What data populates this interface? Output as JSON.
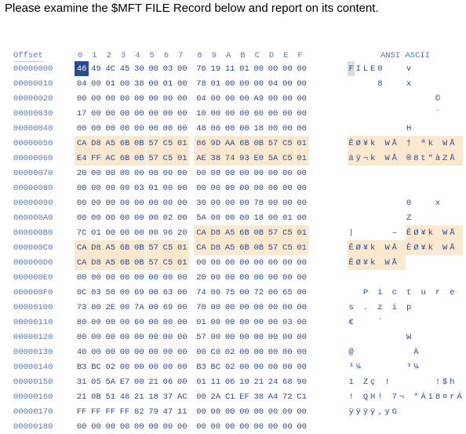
{
  "prompt": "Please examine the $MFT FILE Record below and report on its content.",
  "header": {
    "offset_label": "Offset",
    "columns": [
      "0",
      "1",
      "2",
      "3",
      "4",
      "5",
      "6",
      "7",
      "8",
      "9",
      "A",
      "B",
      "C",
      "D",
      "E",
      "F"
    ],
    "ascii_label": "ANSI ASCII"
  },
  "rows": [
    {
      "offset": "00000000",
      "bytes": [
        "46",
        "49",
        "4C",
        "45",
        "30",
        "00",
        "03",
        "00",
        "76",
        "19",
        "11",
        "01",
        "00",
        "00",
        "00",
        "00"
      ],
      "ascii": "FILE0   v       "
    },
    {
      "offset": "00000010",
      "bytes": [
        "04",
        "00",
        "01",
        "00",
        "38",
        "00",
        "01",
        "00",
        "78",
        "01",
        "00",
        "00",
        "00",
        "04",
        "00",
        "00"
      ],
      "ascii": "    8   x       "
    },
    {
      "offset": "00000020",
      "bytes": [
        "00",
        "00",
        "00",
        "00",
        "00",
        "00",
        "00",
        "00",
        "04",
        "00",
        "00",
        "00",
        "A9",
        "00",
        "00",
        "00"
      ],
      "ascii": "            ©   "
    },
    {
      "offset": "00000030",
      "bytes": [
        "17",
        "00",
        "00",
        "00",
        "00",
        "00",
        "00",
        "00",
        "10",
        "00",
        "00",
        "00",
        "60",
        "00",
        "00",
        "00"
      ],
      "ascii": "            `   "
    },
    {
      "offset": "00000040",
      "bytes": [
        "00",
        "00",
        "00",
        "00",
        "00",
        "00",
        "00",
        "00",
        "48",
        "00",
        "00",
        "00",
        "18",
        "00",
        "00",
        "00"
      ],
      "ascii": "        H       "
    },
    {
      "offset": "00000050",
      "bytes": [
        "CA",
        "D8",
        "A5",
        "6B",
        "0B",
        "57",
        "C5",
        "01",
        "86",
        "9D",
        "AA",
        "6B",
        "0B",
        "57",
        "C5",
        "01"
      ],
      "ascii": "ÊØ¥k WÅ † ªk WÅ "
    },
    {
      "offset": "00000060",
      "bytes": [
        "E4",
        "FF",
        "AC",
        "6B",
        "0B",
        "57",
        "C5",
        "01",
        "AE",
        "38",
        "74",
        "93",
        "E0",
        "5A",
        "C5",
        "01"
      ],
      "ascii": "äÿ¬k WÅ ®8t“àZÅ "
    },
    {
      "offset": "00000070",
      "bytes": [
        "20",
        "00",
        "00",
        "00",
        "00",
        "00",
        "00",
        "00",
        "00",
        "00",
        "00",
        "00",
        "00",
        "00",
        "00",
        "00"
      ],
      "ascii": "                "
    },
    {
      "offset": "00000080",
      "bytes": [
        "00",
        "00",
        "00",
        "00",
        "03",
        "01",
        "00",
        "00",
        "00",
        "00",
        "00",
        "00",
        "00",
        "00",
        "00",
        "00"
      ],
      "ascii": "                "
    },
    {
      "offset": "00000090",
      "bytes": [
        "00",
        "00",
        "00",
        "00",
        "00",
        "00",
        "00",
        "00",
        "30",
        "00",
        "00",
        "00",
        "78",
        "00",
        "00",
        "00"
      ],
      "ascii": "        0   x   "
    },
    {
      "offset": "000000A0",
      "bytes": [
        "00",
        "00",
        "00",
        "00",
        "00",
        "00",
        "02",
        "00",
        "5A",
        "00",
        "00",
        "00",
        "18",
        "00",
        "01",
        "00"
      ],
      "ascii": "        Z       "
    },
    {
      "offset": "000000B0",
      "bytes": [
        "7C",
        "01",
        "00",
        "00",
        "00",
        "00",
        "96",
        "20",
        "CA",
        "D8",
        "A5",
        "6B",
        "0B",
        "57",
        "C5",
        "01"
      ],
      "ascii": "|     – ÊØ¥k WÅ "
    },
    {
      "offset": "000000C0",
      "bytes": [
        "CA",
        "D8",
        "A5",
        "6B",
        "0B",
        "57",
        "C5",
        "01",
        "CA",
        "D8",
        "A5",
        "6B",
        "0B",
        "57",
        "C5",
        "01"
      ],
      "ascii": "ÊØ¥k WÅ ÊØ¥k WÅ "
    },
    {
      "offset": "000000D0",
      "bytes": [
        "CA",
        "D8",
        "A5",
        "6B",
        "0B",
        "57",
        "C5",
        "01",
        "00",
        "00",
        "00",
        "00",
        "00",
        "00",
        "00",
        "00"
      ],
      "ascii": "ÊØ¥k WÅ         "
    },
    {
      "offset": "000000E0",
      "bytes": [
        "00",
        "00",
        "00",
        "00",
        "00",
        "00",
        "00",
        "00",
        "20",
        "00",
        "00",
        "00",
        "00",
        "00",
        "00",
        "00"
      ],
      "ascii": "                "
    },
    {
      "offset": "000000F0",
      "bytes": [
        "0C",
        "03",
        "50",
        "00",
        "69",
        "00",
        "63",
        "00",
        "74",
        "00",
        "75",
        "00",
        "72",
        "00",
        "65",
        "00"
      ],
      "ascii": "  P i c t u r e "
    },
    {
      "offset": "00000100",
      "bytes": [
        "73",
        "00",
        "2E",
        "00",
        "7A",
        "00",
        "69",
        "00",
        "70",
        "00",
        "00",
        "00",
        "00",
        "00",
        "00",
        "00"
      ],
      "ascii": "s . z i p       "
    },
    {
      "offset": "00000110",
      "bytes": [
        "80",
        "00",
        "00",
        "00",
        "60",
        "00",
        "00",
        "00",
        "01",
        "00",
        "00",
        "00",
        "00",
        "00",
        "03",
        "00"
      ],
      "ascii": "€   `           "
    },
    {
      "offset": "00000120",
      "bytes": [
        "00",
        "00",
        "00",
        "00",
        "00",
        "00",
        "00",
        "00",
        "57",
        "00",
        "00",
        "00",
        "00",
        "00",
        "00",
        "00"
      ],
      "ascii": "        W       "
    },
    {
      "offset": "00000130",
      "bytes": [
        "40",
        "00",
        "00",
        "00",
        "00",
        "00",
        "00",
        "00",
        "00",
        "C0",
        "02",
        "00",
        "00",
        "00",
        "00",
        "00"
      ],
      "ascii": "@        À      "
    },
    {
      "offset": "00000140",
      "bytes": [
        "B3",
        "BC",
        "02",
        "00",
        "00",
        "00",
        "00",
        "00",
        "B3",
        "BC",
        "02",
        "00",
        "00",
        "00",
        "00",
        "00"
      ],
      "ascii": "³¼      ³¼      "
    },
    {
      "offset": "00000150",
      "bytes": [
        "31",
        "05",
        "5A",
        "E7",
        "00",
        "21",
        "06",
        "00",
        "01",
        "11",
        "06",
        "10",
        "21",
        "24",
        "68",
        "90"
      ],
      "ascii": "1 Zç !      !$h "
    },
    {
      "offset": "00000160",
      "bytes": [
        "21",
        "0B",
        "51",
        "48",
        "21",
        "18",
        "37",
        "AC",
        "00",
        "2A",
        "C1",
        "EF",
        "38",
        "A4",
        "72",
        "C1"
      ],
      "ascii": "! QH! 7¬ *Áï8¤rÁ"
    },
    {
      "offset": "00000170",
      "bytes": [
        "FF",
        "FF",
        "FF",
        "FF",
        "82",
        "79",
        "47",
        "11",
        "00",
        "00",
        "00",
        "00",
        "00",
        "00",
        "00",
        "00"
      ],
      "ascii": "ÿÿÿÿ‚yG         "
    },
    {
      "offset": "00000180",
      "bytes": [
        "00",
        "00",
        "00",
        "00",
        "00",
        "00",
        "00",
        "00",
        "00",
        "00",
        "00",
        "00",
        "00",
        "00",
        "00",
        "00"
      ],
      "ascii": "                "
    }
  ],
  "highlight_ranges": [
    {
      "row": 5,
      "cols": [
        0,
        15
      ]
    },
    {
      "row": 6,
      "cols": [
        0,
        15
      ]
    },
    {
      "row": 11,
      "cols": [
        8,
        15
      ]
    },
    {
      "row": 12,
      "cols": [
        0,
        15
      ]
    },
    {
      "row": 13,
      "cols": [
        0,
        7
      ]
    }
  ],
  "cursor": {
    "row": 0,
    "col": 0
  },
  "colors": {
    "hex_text": "#2b4a96",
    "offset_text": "#5a78b8",
    "highlight": "#fbe9cf",
    "cursor_bg": "#2b4a96"
  }
}
